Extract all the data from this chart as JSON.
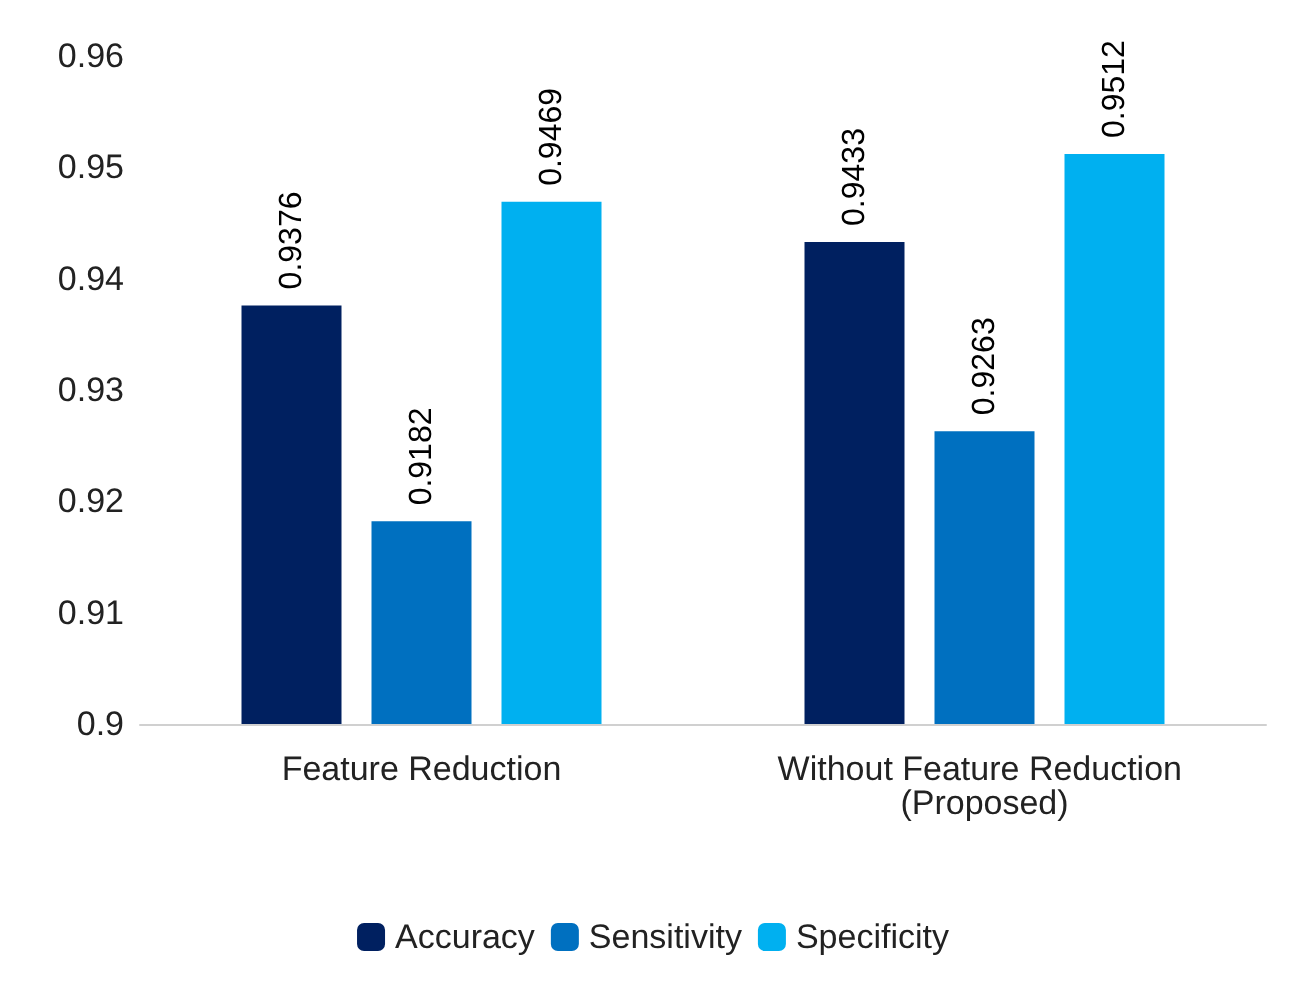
{
  "chart_data": {
    "type": "bar",
    "categories": [
      "Feature Reduction",
      "Without Feature Reduction (Proposed)"
    ],
    "series": [
      {
        "name": "Accuracy",
        "color": "#002060",
        "values": [
          0.9376,
          0.9433
        ]
      },
      {
        "name": "Sensitivity",
        "color": "#0070c0",
        "values": [
          0.9182,
          0.9263
        ]
      },
      {
        "name": "Specificity",
        "color": "#00b0f0",
        "values": [
          0.9469,
          0.9512
        ]
      }
    ],
    "ylim": [
      0.9,
      0.96
    ],
    "yticks": [
      0.9,
      0.91,
      0.92,
      0.93,
      0.94,
      0.95,
      0.96
    ],
    "grid": false,
    "legend": "bottom",
    "data_labels": true
  }
}
